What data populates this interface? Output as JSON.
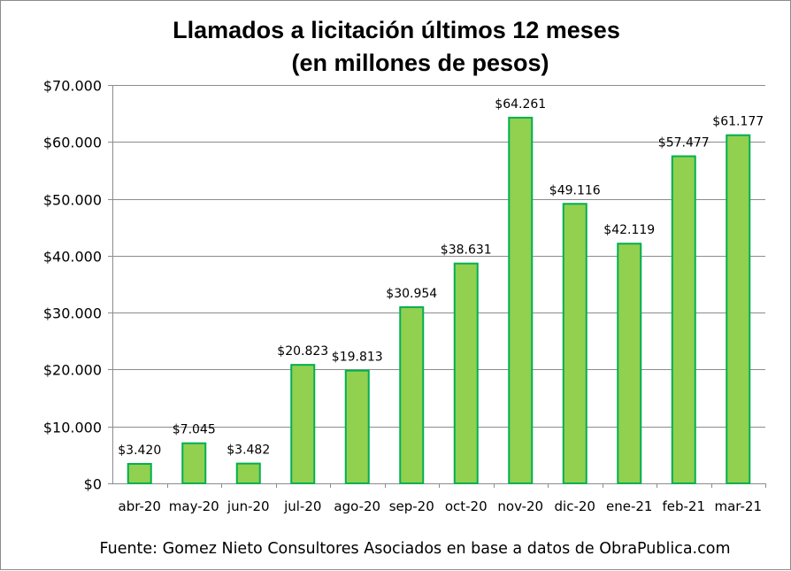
{
  "chart_data": {
    "type": "bar",
    "title": "Llamados a licitación últimos 12 meses",
    "subtitle": "(en millones de pesos)",
    "xlabel": "",
    "ylabel": "",
    "categories": [
      "abr-20",
      "may-20",
      "jun-20",
      "jul-20",
      "ago-20",
      "sep-20",
      "oct-20",
      "nov-20",
      "dic-20",
      "ene-21",
      "feb-21",
      "mar-21"
    ],
    "values": [
      3420,
      7045,
      3482,
      20823,
      19813,
      30954,
      38631,
      64261,
      49116,
      42119,
      57477,
      61177
    ],
    "data_labels": [
      "$3.420",
      "$7.045",
      "$3.482",
      "$20.823",
      "$19.813",
      "$30.954",
      "$38.631",
      "$64.261",
      "$49.116",
      "$42.119",
      "$57.477",
      "$61.177"
    ],
    "ylim": [
      0,
      70000
    ],
    "yticks": [
      0,
      10000,
      20000,
      30000,
      40000,
      50000,
      60000,
      70000
    ],
    "ytick_labels": [
      "$0",
      "$10.000",
      "$20.000",
      "$30.000",
      "$40.000",
      "$50.000",
      "$60.000",
      "$70.000"
    ],
    "grid": true,
    "legend": "none",
    "colors": {
      "bar_fill": "#92d050",
      "bar_stroke": "#00b050"
    }
  },
  "source_note": "Fuente: Gomez Nieto Consultores Asociados en base a datos de ObraPublica.com"
}
